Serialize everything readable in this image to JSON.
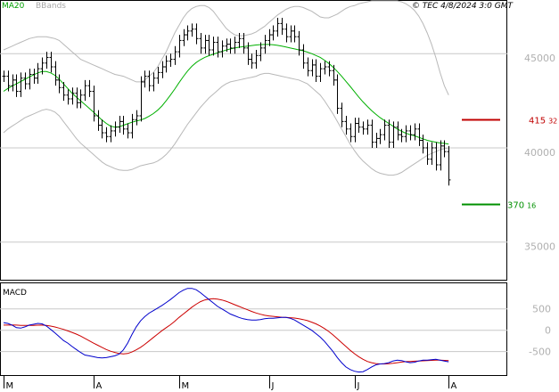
{
  "header": {
    "legend_ma": "MA20",
    "legend_bbands": "BBands",
    "timestamp": "© TEC 4/8/2024 3:0 GMT"
  },
  "colors": {
    "ma_line": "#00b000",
    "bbands": "#b8b8b8",
    "price_bars": "#000000",
    "resistance": "#c00000",
    "support": "#009000",
    "macd_line": "#0000cc",
    "signal_line": "#cc0000",
    "grid": "#c8c8c8"
  },
  "chart_data": [
    {
      "type": "bar",
      "subtype": "ohlc",
      "title": "",
      "ylim": [
        33000,
        47800
      ],
      "y_ticks": [
        {
          "value": 45000,
          "label": "45000"
        },
        {
          "value": 40000,
          "label": "40000"
        },
        {
          "value": 35000,
          "label": "35000"
        }
      ],
      "x_ticks": [
        {
          "index": 0,
          "label": "M"
        },
        {
          "index": 21,
          "label": "A"
        },
        {
          "index": 41,
          "label": "M"
        },
        {
          "index": 62,
          "label": "J"
        },
        {
          "index": 82,
          "label": "J"
        },
        {
          "index": 104,
          "label": "A"
        }
      ],
      "close": [
        43800,
        43300,
        43600,
        43000,
        43700,
        43400,
        43900,
        43700,
        44200,
        44500,
        44800,
        44300,
        43600,
        43200,
        42800,
        42600,
        42900,
        42400,
        42800,
        43300,
        43000,
        41700,
        41200,
        40800,
        40600,
        40900,
        41100,
        41400,
        41000,
        40800,
        41500,
        41700,
        43500,
        43800,
        43300,
        43700,
        44000,
        44300,
        44600,
        44700,
        45100,
        45700,
        46000,
        46200,
        46300,
        45800,
        45300,
        45700,
        45200,
        45600,
        45100,
        45400,
        45500,
        45300,
        45600,
        45800,
        45300,
        44700,
        44500,
        44900,
        45300,
        45700,
        46000,
        46200,
        46600,
        46300,
        45900,
        46200,
        45900,
        45200,
        44500,
        44100,
        44400,
        43800,
        44200,
        44300,
        44100,
        43600,
        42100,
        41400,
        41000,
        40600,
        41300,
        41100,
        41000,
        41200,
        40300,
        40500,
        40700,
        41200,
        40300,
        41100,
        40700,
        40600,
        40900,
        40700,
        41000,
        40400,
        40000,
        39400,
        40000,
        39100,
        40100,
        39800,
        38300
      ],
      "ma20": [
        43000,
        43150,
        43280,
        43400,
        43520,
        43640,
        43760,
        43870,
        43980,
        44050,
        44050,
        43980,
        43850,
        43650,
        43400,
        43150,
        42900,
        42700,
        42500,
        42300,
        42100,
        41900,
        41680,
        41480,
        41300,
        41150,
        41100,
        41120,
        41200,
        41280,
        41360,
        41420,
        41480,
        41560,
        41680,
        41820,
        42000,
        42220,
        42500,
        42800,
        43120,
        43460,
        43780,
        44080,
        44330,
        44530,
        44680,
        44800,
        44890,
        44970,
        45050,
        45120,
        45190,
        45250,
        45300,
        45340,
        45370,
        45400,
        45430,
        45460,
        45480,
        45490,
        45490,
        45470,
        45440,
        45400,
        45350,
        45300,
        45250,
        45200,
        45150,
        45080,
        45000,
        44900,
        44800,
        44650,
        44480,
        44280,
        44050,
        43800,
        43530,
        43260,
        42980,
        42700,
        42440,
        42200,
        41980,
        41780,
        41600,
        41450,
        41300,
        41150,
        41000,
        40880,
        40780,
        40700,
        40640,
        40560,
        40480,
        40400,
        40350,
        40300,
        40260,
        40240,
        40200
      ],
      "bb_upper": [
        45200,
        45300,
        45400,
        45500,
        45600,
        45700,
        45800,
        45850,
        45900,
        45900,
        45900,
        45850,
        45800,
        45700,
        45500,
        45300,
        45100,
        44900,
        44700,
        44600,
        44500,
        44400,
        44300,
        44200,
        44100,
        44000,
        43900,
        43850,
        43800,
        43700,
        43600,
        43500,
        43500,
        43600,
        43800,
        44000,
        44300,
        44700,
        45100,
        45600,
        46100,
        46500,
        46900,
        47200,
        47400,
        47500,
        47550,
        47550,
        47450,
        47250,
        46950,
        46650,
        46350,
        46150,
        46000,
        45950,
        45950,
        46000,
        46050,
        46150,
        46300,
        46450,
        46650,
        46850,
        47050,
        47200,
        47350,
        47450,
        47500,
        47500,
        47450,
        47350,
        47250,
        47100,
        46950,
        46900,
        46900,
        47000,
        47100,
        47250,
        47400,
        47500,
        47550,
        47650,
        47700,
        47750,
        47800,
        47800,
        47800,
        47800,
        47800,
        47800,
        47800,
        47750,
        47650,
        47500,
        47300,
        47000,
        46600,
        46100,
        45500,
        44800,
        44000,
        43300,
        42800
      ],
      "bb_lower": [
        40800,
        41000,
        41150,
        41300,
        41450,
        41600,
        41700,
        41800,
        41900,
        42000,
        42050,
        42000,
        41900,
        41700,
        41400,
        41100,
        40800,
        40500,
        40250,
        40050,
        39850,
        39650,
        39450,
        39250,
        39100,
        39000,
        38900,
        38830,
        38800,
        38800,
        38850,
        38950,
        39050,
        39100,
        39150,
        39200,
        39300,
        39450,
        39650,
        39900,
        40200,
        40550,
        40900,
        41250,
        41550,
        41850,
        42150,
        42400,
        42650,
        42850,
        43050,
        43250,
        43400,
        43500,
        43550,
        43600,
        43650,
        43700,
        43750,
        43800,
        43900,
        43950,
        43950,
        43900,
        43850,
        43800,
        43750,
        43700,
        43650,
        43600,
        43500,
        43400,
        43200,
        43000,
        42800,
        42500,
        42150,
        41800,
        41400,
        41000,
        40600,
        40200,
        39850,
        39550,
        39300,
        39100,
        38900,
        38750,
        38650,
        38600,
        38550,
        38550,
        38600,
        38700,
        38850,
        39000,
        39150,
        39300,
        39450,
        39600,
        39700,
        39800,
        39900,
        39950,
        40000
      ],
      "levels": [
        {
          "name": "resistance",
          "value": 41532,
          "label": "41532"
        },
        {
          "name": "support",
          "value": 37016,
          "label": "37016"
        }
      ]
    },
    {
      "type": "line",
      "title": "MACD",
      "ylim": [
        -1050,
        1100
      ],
      "y_ticks": [
        {
          "value": 500,
          "label": "500"
        },
        {
          "value": 0,
          "label": "0"
        },
        {
          "value": -500,
          "label": "-500"
        }
      ],
      "series": [
        {
          "key": "macd",
          "values": [
            180,
            160,
            120,
            60,
            50,
            80,
            120,
            140,
            160,
            150,
            100,
            20,
            -60,
            -150,
            -240,
            -300,
            -380,
            -450,
            -520,
            -580,
            -600,
            -620,
            -640,
            -650,
            -640,
            -620,
            -600,
            -560,
            -460,
            -300,
            -100,
            80,
            220,
            320,
            400,
            460,
            520,
            580,
            650,
            720,
            800,
            880,
            940,
            980,
            980,
            950,
            880,
            800,
            720,
            640,
            560,
            500,
            440,
            380,
            340,
            300,
            270,
            250,
            240,
            240,
            250,
            270,
            280,
            280,
            290,
            300,
            300,
            280,
            240,
            180,
            120,
            60,
            0,
            -80,
            -160,
            -260,
            -380,
            -500,
            -640,
            -760,
            -860,
            -920,
            -960,
            -980,
            -970,
            -920,
            -860,
            -810,
            -790,
            -780,
            -760,
            -720,
            -700,
            -710,
            -740,
            -760,
            -750,
            -720,
            -700,
            -700,
            -690,
            -680,
            -700,
            -720,
            -740
          ]
        },
        {
          "key": "signal",
          "values": [
            120,
            122,
            123,
            120,
            115,
            112,
            112,
            114,
            118,
            120,
            115,
            98,
            77,
            51,
            20,
            -15,
            -50,
            -90,
            -135,
            -190,
            -245,
            -300,
            -350,
            -400,
            -450,
            -490,
            -520,
            -545,
            -555,
            -545,
            -510,
            -460,
            -400,
            -330,
            -250,
            -170,
            -90,
            -10,
            60,
            130,
            210,
            300,
            380,
            460,
            540,
            610,
            670,
            710,
            730,
            740,
            730,
            710,
            680,
            640,
            600,
            560,
            520,
            480,
            440,
            405,
            375,
            350,
            335,
            325,
            315,
            305,
            300,
            295,
            285,
            270,
            250,
            225,
            190,
            150,
            100,
            40,
            -30,
            -110,
            -200,
            -290,
            -380,
            -470,
            -550,
            -620,
            -680,
            -730,
            -760,
            -780,
            -790,
            -790,
            -785,
            -775,
            -760,
            -745,
            -735,
            -730,
            -725,
            -720,
            -715,
            -710,
            -705,
            -700,
            -700,
            -705,
            -710
          ]
        }
      ]
    }
  ]
}
